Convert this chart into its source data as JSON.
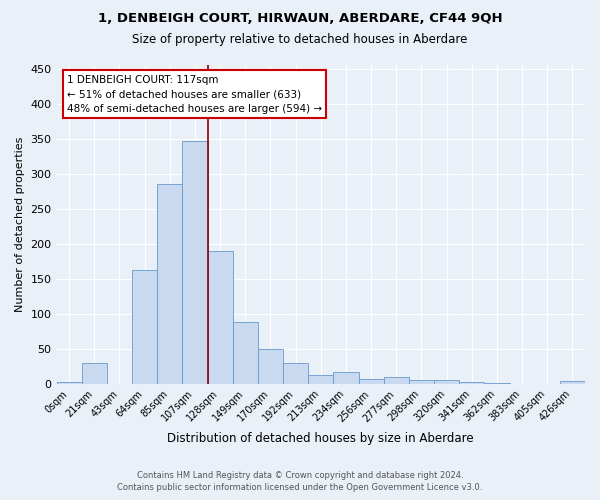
{
  "title": "1, DENBEIGH COURT, HIRWAUN, ABERDARE, CF44 9QH",
  "subtitle": "Size of property relative to detached houses in Aberdare",
  "xlabel": "Distribution of detached houses by size in Aberdare",
  "ylabel": "Number of detached properties",
  "categories": [
    "0sqm",
    "21sqm",
    "43sqm",
    "64sqm",
    "85sqm",
    "107sqm",
    "128sqm",
    "149sqm",
    "170sqm",
    "192sqm",
    "213sqm",
    "234sqm",
    "256sqm",
    "277sqm",
    "298sqm",
    "320sqm",
    "341sqm",
    "362sqm",
    "383sqm",
    "405sqm",
    "426sqm"
  ],
  "bar_heights": [
    3,
    30,
    0,
    162,
    285,
    346,
    190,
    88,
    50,
    30,
    13,
    17,
    7,
    10,
    5,
    5,
    2,
    1,
    0,
    0,
    4
  ],
  "bar_color_face": "#c8d9f0",
  "bar_color_edge": "#6699cc",
  "vline_x": 5.5,
  "vline_color": "#8b0000",
  "annotation_text": "1 DENBEIGH COURT: 117sqm\n← 51% of detached houses are smaller (633)\n48% of semi-detached houses are larger (594) →",
  "annotation_box_color": "#ffffff",
  "annotation_box_edge": "#cc0000",
  "ylim": [
    0,
    455
  ],
  "yticks": [
    0,
    50,
    100,
    150,
    200,
    250,
    300,
    350,
    400,
    450
  ],
  "background_color": "#eaf0f8",
  "grid_color": "#ffffff",
  "footer_line1": "Contains HM Land Registry data © Crown copyright and database right 2024.",
  "footer_line2": "Contains public sector information licensed under the Open Government Licence v3.0."
}
